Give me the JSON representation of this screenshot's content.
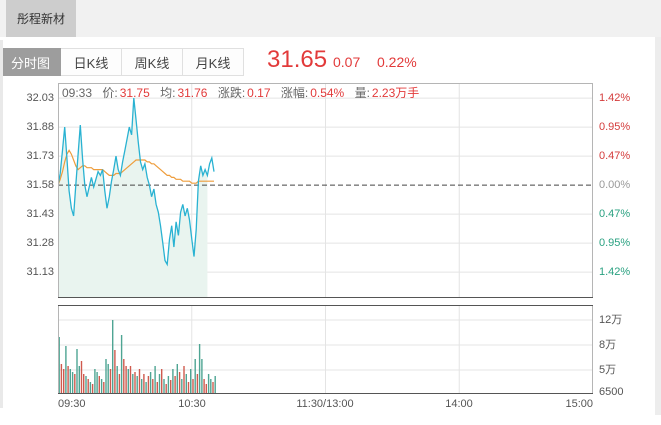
{
  "window": {
    "stock_tab": "彤程新材"
  },
  "tabs": {
    "items": [
      {
        "label": "分时图",
        "selected": true
      },
      {
        "label": "日K线",
        "selected": false
      },
      {
        "label": "周K线",
        "selected": false
      },
      {
        "label": "月K线",
        "selected": false
      }
    ]
  },
  "quote": {
    "price": "31.65",
    "change": "0.07",
    "change_pct": "0.22%"
  },
  "infobar": {
    "time": "09:33",
    "price_label": "价:",
    "price": "31.75",
    "avg_label": "均:",
    "avg": "31.76",
    "chg_label": "涨跌:",
    "chg": "0.17",
    "pct_label": "涨幅:",
    "pct": "0.54%",
    "vol_label": "量:",
    "vol": "2.23万手"
  },
  "colors": {
    "up_red": "#d43b3b",
    "down_green": "#2aa181",
    "zero_gray": "#999999",
    "price_line": "#29b2d2",
    "avg_line": "#ee9d3c",
    "fill": "#e9f4ef",
    "vol_up": "#cf5a4e",
    "vol_down": "#4ea593",
    "grid": "#e4e4e4",
    "border": "#b5b5b5",
    "dark_border": "#555555",
    "quote_red": "#e23a3a"
  },
  "chart_data": {
    "type": "line",
    "title": "分时图 (intraday price/average with volume)",
    "prev_close": 31.58,
    "x_axis": {
      "labels": [
        "09:30",
        "10:30",
        "11:30/13:00",
        "14:00",
        "15:00"
      ],
      "total_minutes": 240
    },
    "price_axis_left": [
      "32.03",
      "31.88",
      "31.73",
      "31.58",
      "31.43",
      "31.28",
      "31.13"
    ],
    "price_axis_left_values": [
      32.03,
      31.88,
      31.73,
      31.58,
      31.43,
      31.28,
      31.13
    ],
    "pct_axis_right": [
      {
        "label": "1.42%",
        "tone": "up"
      },
      {
        "label": "0.95%",
        "tone": "up"
      },
      {
        "label": "0.47%",
        "tone": "up"
      },
      {
        "label": "0.00%",
        "tone": "zero"
      },
      {
        "label": "0.47%",
        "tone": "down"
      },
      {
        "label": "0.95%",
        "tone": "down"
      },
      {
        "label": "1.42%",
        "tone": "down"
      }
    ],
    "volume_axis": [
      "12万",
      "8万",
      "5万",
      "6500"
    ],
    "ylim_price": [
      30.996,
      32.108
    ],
    "series": [
      {
        "name": "price",
        "values": [
          31.58,
          31.64,
          31.76,
          31.88,
          31.72,
          31.55,
          31.46,
          31.42,
          31.58,
          31.74,
          31.89,
          31.72,
          31.58,
          31.52,
          31.57,
          31.62,
          31.57,
          31.61,
          31.65,
          31.63,
          31.66,
          31.55,
          31.46,
          31.52,
          31.6,
          31.66,
          31.73,
          31.66,
          31.63,
          31.7,
          31.76,
          31.82,
          31.88,
          31.84,
          32.03,
          31.92,
          31.8,
          31.7,
          31.66,
          31.69,
          31.62,
          31.58,
          31.52,
          31.56,
          31.48,
          31.44,
          31.37,
          31.28,
          31.19,
          31.17,
          31.3,
          31.37,
          31.26,
          31.39,
          31.32,
          31.44,
          31.48,
          31.42,
          31.46,
          31.4,
          31.3,
          31.21,
          31.35,
          31.6,
          31.68,
          31.63,
          31.66,
          31.63,
          31.69,
          31.72,
          31.65
        ]
      },
      {
        "name": "average",
        "values": [
          31.58,
          31.61,
          31.65,
          31.7,
          31.74,
          31.76,
          31.74,
          31.71,
          31.68,
          31.66,
          31.67,
          31.68,
          31.68,
          31.67,
          31.67,
          31.67,
          31.66,
          31.66,
          31.66,
          31.66,
          31.66,
          31.65,
          31.64,
          31.63,
          31.63,
          31.63,
          31.64,
          31.64,
          31.64,
          31.65,
          31.66,
          31.67,
          31.68,
          31.69,
          31.7,
          31.71,
          31.71,
          31.71,
          31.71,
          31.71,
          31.7,
          31.7,
          31.69,
          31.69,
          31.68,
          31.67,
          31.66,
          31.65,
          31.64,
          31.63,
          31.63,
          31.62,
          31.62,
          31.61,
          31.61,
          31.61,
          31.6,
          31.6,
          31.6,
          31.6,
          31.59,
          31.59,
          31.59,
          31.6,
          31.6,
          31.6,
          31.6,
          31.6,
          31.6,
          31.6,
          31.6
        ]
      }
    ],
    "volume_bars": [
      [
        "g",
        57
      ],
      [
        "r",
        30
      ],
      [
        "r",
        25
      ],
      [
        "g",
        48
      ],
      [
        "r",
        28
      ],
      [
        "g",
        25
      ],
      [
        "g",
        22
      ],
      [
        "r",
        20
      ],
      [
        "g",
        45
      ],
      [
        "g",
        28
      ],
      [
        "r",
        33
      ],
      [
        "r",
        20
      ],
      [
        "g",
        18
      ],
      [
        "r",
        15
      ],
      [
        "g",
        12
      ],
      [
        "r",
        10
      ],
      [
        "g",
        25
      ],
      [
        "g",
        22
      ],
      [
        "r",
        18
      ],
      [
        "g",
        15
      ],
      [
        "r",
        12
      ],
      [
        "g",
        35
      ],
      [
        "g",
        30
      ],
      [
        "r",
        25
      ],
      [
        "g",
        74
      ],
      [
        "r",
        44
      ],
      [
        "g",
        28
      ],
      [
        "r",
        20
      ],
      [
        "g",
        59
      ],
      [
        "r",
        35
      ],
      [
        "r",
        28
      ],
      [
        "g",
        25
      ],
      [
        "r",
        28
      ],
      [
        "g",
        20
      ],
      [
        "r",
        22
      ],
      [
        "g",
        18
      ],
      [
        "r",
        25
      ],
      [
        "g",
        15
      ],
      [
        "r",
        20
      ],
      [
        "g",
        12
      ],
      [
        "r",
        18
      ],
      [
        "g",
        22
      ],
      [
        "r",
        15
      ],
      [
        "g",
        28
      ],
      [
        "r",
        12
      ],
      [
        "g",
        20
      ],
      [
        "r",
        25
      ],
      [
        "g",
        15
      ],
      [
        "r",
        10
      ],
      [
        "g",
        18
      ],
      [
        "r",
        14
      ],
      [
        "g",
        25
      ],
      [
        "r",
        18
      ],
      [
        "g",
        30
      ],
      [
        "r",
        22
      ],
      [
        "g",
        15
      ],
      [
        "r",
        28
      ],
      [
        "g",
        20
      ],
      [
        "r",
        12
      ],
      [
        "g",
        25
      ],
      [
        "r",
        15
      ],
      [
        "g",
        35
      ],
      [
        "r",
        20
      ],
      [
        "g",
        50
      ],
      [
        "g",
        35
      ],
      [
        "r",
        15
      ],
      [
        "r",
        10
      ],
      [
        "g",
        20
      ],
      [
        "g",
        15
      ],
      [
        "r",
        12
      ],
      [
        "g",
        18
      ]
    ],
    "fill_end_index": 67,
    "fill_bottom_price": 30.9
  }
}
